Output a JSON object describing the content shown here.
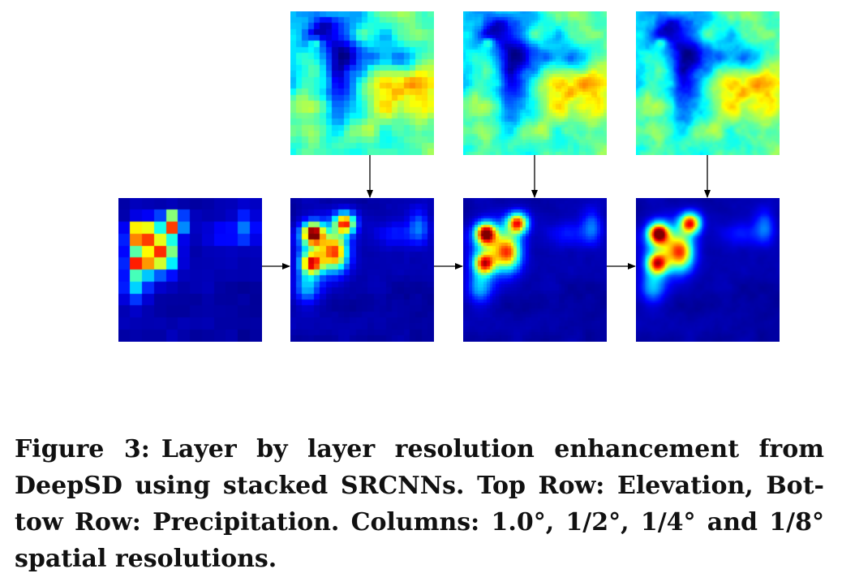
{
  "figure": {
    "label": "Figure 3:",
    "caption": "Layer by layer resolution enhancement from DeepSD using stacked SRCNNs. Top Row: Elevation, Bot­tow Row: Precipitation. Columns: 1.0°, 1/2°, 1/4° and 1/8° spatial resolutions."
  },
  "colormap": "jet",
  "colors": {
    "background": "#ffffff",
    "arrow": "#000000",
    "heatmap_low": "#00008f",
    "heatmap_high": "#7f0000"
  },
  "grid_sizes": [
    12,
    24,
    48,
    96
  ]
}
